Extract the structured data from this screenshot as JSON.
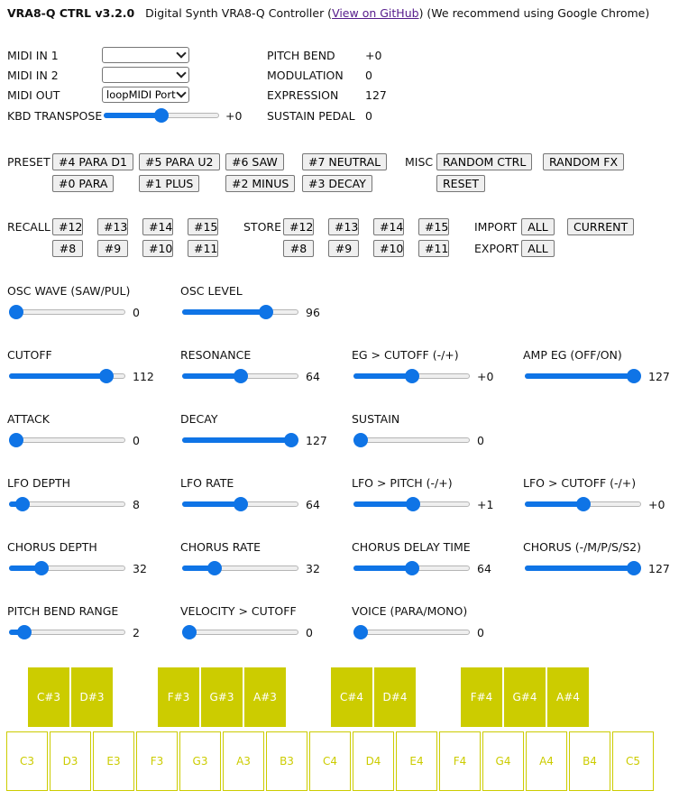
{
  "header": {
    "title": "VRA8-Q CTRL v3.2.0",
    "description": "Digital Synth VRA8-Q Controller (",
    "link": "View on GitHub",
    "tail": ") (We recommend using Google Chrome)"
  },
  "midi": {
    "in1_label": "MIDI IN 1",
    "in1_value": "",
    "in2_label": "MIDI IN 2",
    "in2_value": "",
    "out_label": "MIDI OUT",
    "out_value": "loopMIDI Port",
    "transpose_label": "KBD TRANSPOSE",
    "transpose_value": "+0",
    "transpose_level": 0.5
  },
  "status": {
    "pitch_bend_label": "PITCH BEND",
    "pitch_bend_value": "+0",
    "modulation_label": "MODULATION",
    "modulation_value": "0",
    "expression_label": "EXPRESSION",
    "expression_value": "127",
    "sustain_label": "SUSTAIN PEDAL",
    "sustain_value": "0"
  },
  "preset": {
    "label": "PRESET",
    "buttons_row1": [
      "#4 PARA D1",
      "#5 PARA U2",
      "#6 SAW",
      "#7 NEUTRAL"
    ],
    "buttons_row2": [
      "#0 PARA",
      "#1 PLUS",
      "#2 MINUS",
      "#3 DECAY"
    ]
  },
  "misc": {
    "label": "MISC",
    "random_ctrl": "RANDOM CTRL",
    "random_fx": "RANDOM FX",
    "reset": "RESET"
  },
  "recall": {
    "label": "RECALL",
    "row1": [
      "#12",
      "#13",
      "#14",
      "#15"
    ],
    "row2": [
      "#8",
      "#9",
      "#10",
      "#11"
    ]
  },
  "store": {
    "label": "STORE",
    "row1": [
      "#12",
      "#13",
      "#14",
      "#15"
    ],
    "row2": [
      "#8",
      "#9",
      "#10",
      "#11"
    ]
  },
  "import": {
    "label": "IMPORT",
    "all": "ALL",
    "current": "CURRENT"
  },
  "export": {
    "label": "EXPORT",
    "all": "ALL"
  },
  "params": [
    {
      "label": "OSC WAVE (SAW/PUL)",
      "value": "0",
      "level": 0
    },
    {
      "label": "OSC LEVEL",
      "value": "96",
      "level": 0.756
    },
    {
      "label": "CUTOFF",
      "value": "112",
      "level": 0.882
    },
    {
      "label": "RESONANCE",
      "value": "64",
      "level": 0.504
    },
    {
      "label": "EG > CUTOFF (-/+)",
      "value": "+0",
      "level": 0.504
    },
    {
      "label": "AMP EG (OFF/ON)",
      "value": "127",
      "level": 1
    },
    {
      "label": "ATTACK",
      "value": "0",
      "level": 0
    },
    {
      "label": "DECAY",
      "value": "127",
      "level": 1
    },
    {
      "label": "SUSTAIN",
      "value": "0",
      "level": 0
    },
    {
      "label": "LFO DEPTH",
      "value": "8",
      "level": 0.063
    },
    {
      "label": "LFO RATE",
      "value": "64",
      "level": 0.504
    },
    {
      "label": "LFO > PITCH (-/+)",
      "value": "+1",
      "level": 0.512
    },
    {
      "label": "LFO > CUTOFF (-/+)",
      "value": "+0",
      "level": 0.504
    },
    {
      "label": "CHORUS DEPTH",
      "value": "32",
      "level": 0.252
    },
    {
      "label": "CHORUS RATE",
      "value": "32",
      "level": 0.252
    },
    {
      "label": "CHORUS DELAY TIME",
      "value": "64",
      "level": 0.504
    },
    {
      "label": "CHORUS (-/M/P/S/S2)",
      "value": "127",
      "level": 1
    },
    {
      "label": "PITCH BEND RANGE",
      "value": "2",
      "level": 0.083
    },
    {
      "label": "VELOCITY > CUTOFF",
      "value": "0",
      "level": 0
    },
    {
      "label": "VOICE (PARA/MONO)",
      "value": "0",
      "level": 0
    }
  ],
  "keyboard": {
    "black_keys": [
      "C#3",
      "D#3",
      "F#3",
      "G#3",
      "A#3",
      "C#4",
      "D#4",
      "F#4",
      "G#4",
      "A#4"
    ],
    "white_keys": [
      "C3",
      "D3",
      "E3",
      "F3",
      "G3",
      "A3",
      "B3",
      "C4",
      "D4",
      "E4",
      "F4",
      "G4",
      "A4",
      "B4",
      "C5"
    ]
  },
  "colors": {
    "slider": "#0f74e6",
    "key": "#cccc00",
    "link": "#551a8b"
  }
}
